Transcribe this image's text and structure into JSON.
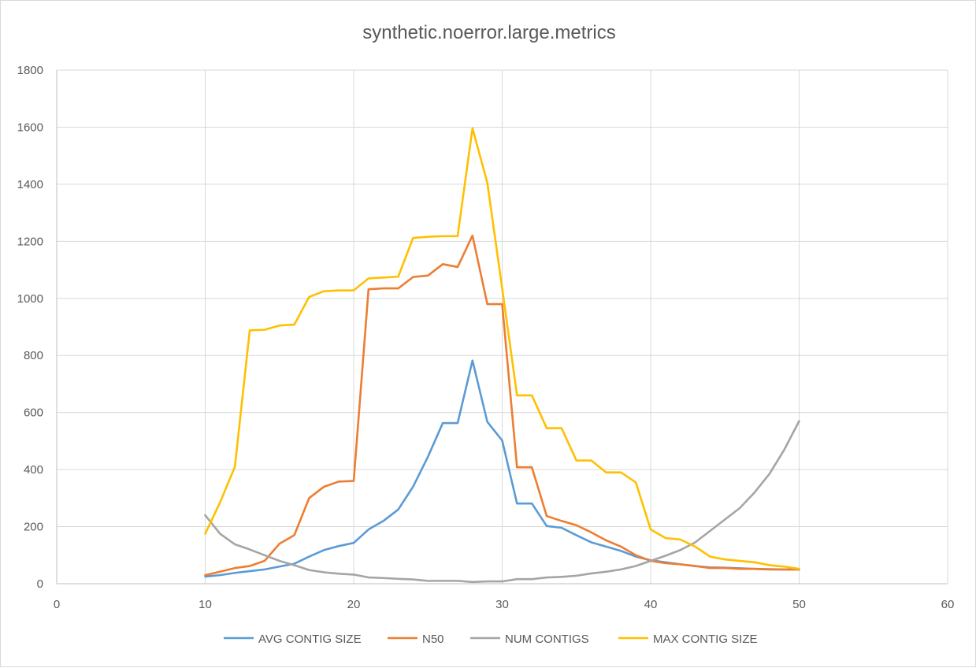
{
  "chart_data": {
    "type": "line",
    "title": "synthetic.noerror.large.metrics",
    "xlabel": "",
    "ylabel": "",
    "xlim": [
      0,
      60
    ],
    "ylim": [
      0,
      1800
    ],
    "x_ticks": [
      0,
      10,
      20,
      30,
      40,
      50,
      60
    ],
    "y_ticks": [
      0,
      200,
      400,
      600,
      800,
      1000,
      1200,
      1400,
      1600,
      1800
    ],
    "grid": true,
    "legend_position": "bottom",
    "x": [
      10,
      11,
      12,
      13,
      14,
      15,
      16,
      17,
      18,
      19,
      20,
      21,
      22,
      23,
      24,
      25,
      26,
      27,
      28,
      29,
      30,
      31,
      32,
      33,
      34,
      35,
      36,
      37,
      38,
      39,
      40,
      41,
      42,
      43,
      44,
      45,
      46,
      47,
      48,
      49,
      50
    ],
    "series": [
      {
        "name": "AVG CONTIG SIZE",
        "color": "#5b9bd5",
        "values": [
          25,
          30,
          38,
          44,
          50,
          60,
          70,
          95,
          118,
          132,
          143,
          190,
          220,
          260,
          340,
          445,
          563,
          563,
          782,
          567,
          502,
          281,
          281,
          202,
          196,
          170,
          145,
          130,
          115,
          95,
          82,
          75,
          68,
          62,
          57,
          56,
          54,
          52,
          51,
          50,
          50
        ]
      },
      {
        "name": "N50",
        "color": "#ed7d31",
        "values": [
          30,
          42,
          55,
          62,
          80,
          140,
          170,
          300,
          340,
          358,
          360,
          1032,
          1035,
          1035,
          1075,
          1080,
          1120,
          1110,
          1220,
          980,
          980,
          408,
          408,
          237,
          220,
          205,
          180,
          152,
          130,
          100,
          80,
          72,
          68,
          62,
          55,
          55,
          52,
          52,
          50,
          50,
          50
        ]
      },
      {
        "name": "NUM CONTIGS",
        "color": "#a5a5a5",
        "values": [
          240,
          175,
          138,
          120,
          100,
          80,
          65,
          48,
          40,
          35,
          32,
          22,
          20,
          17,
          15,
          10,
          10,
          10,
          6,
          8,
          8,
          16,
          16,
          22,
          24,
          28,
          36,
          42,
          50,
          62,
          80,
          98,
          118,
          145,
          185,
          225,
          265,
          320,
          385,
          470,
          570
        ]
      },
      {
        "name": "MAX CONTIG SIZE",
        "color": "#ffc000",
        "values": [
          175,
          285,
          410,
          888,
          890,
          905,
          908,
          1005,
          1025,
          1028,
          1028,
          1070,
          1073,
          1076,
          1212,
          1216,
          1218,
          1218,
          1596,
          1405,
          1035,
          660,
          660,
          545,
          545,
          432,
          432,
          390,
          390,
          355,
          190,
          160,
          155,
          130,
          95,
          85,
          80,
          75,
          65,
          60,
          52
        ]
      }
    ]
  }
}
